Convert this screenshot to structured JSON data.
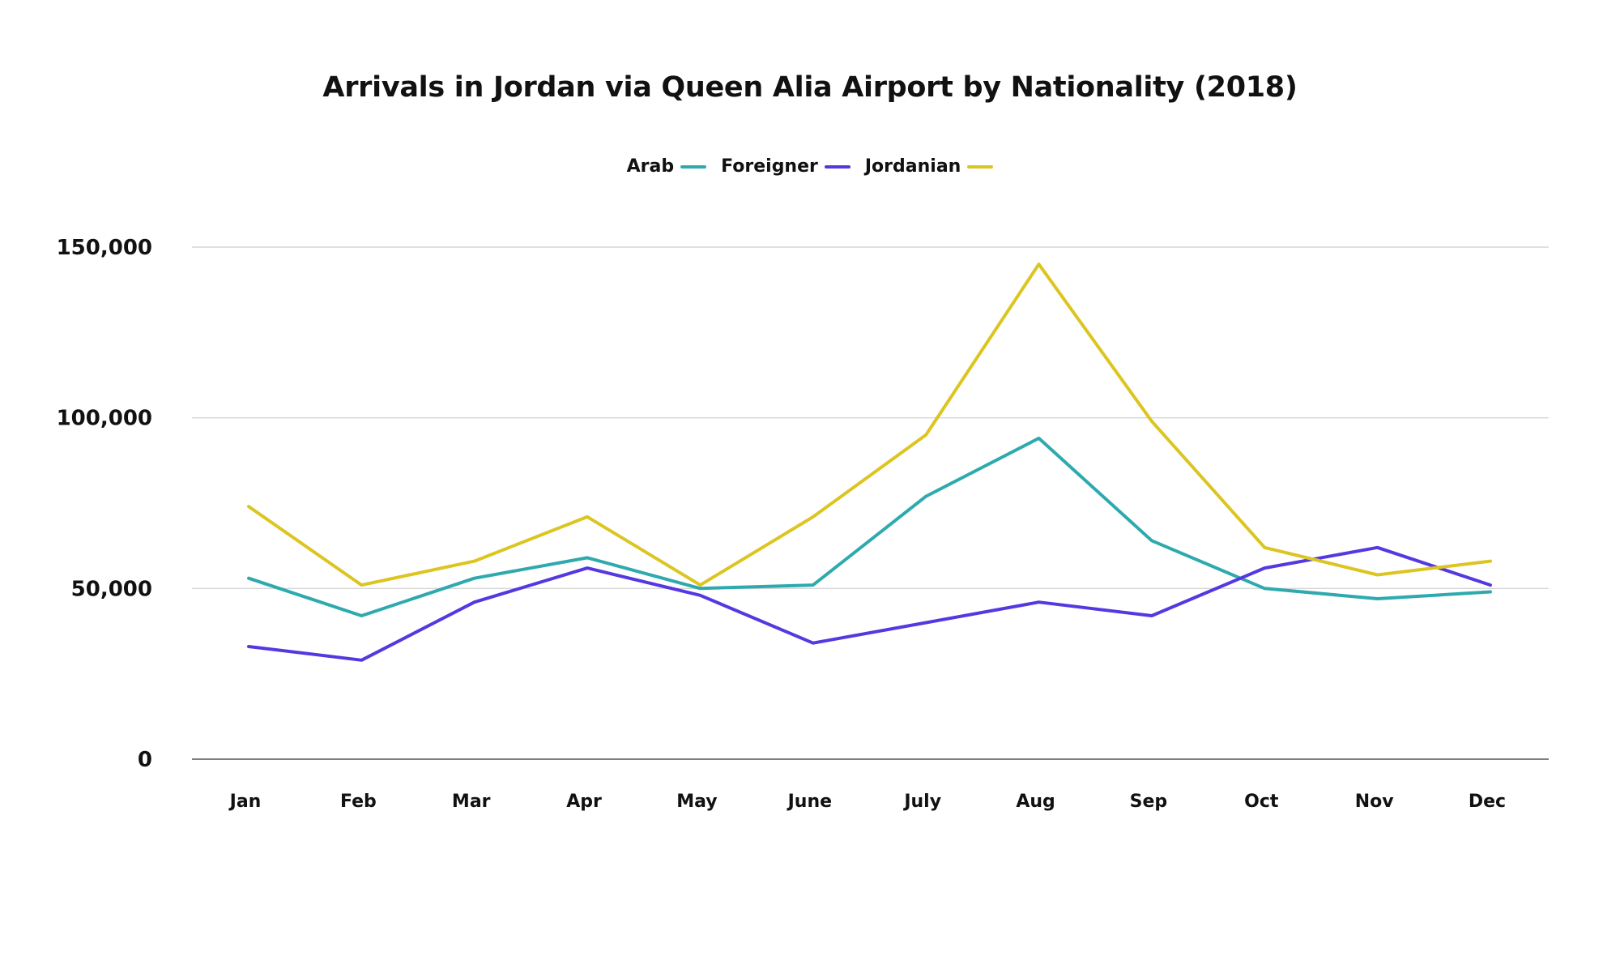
{
  "chart_data": {
    "type": "line",
    "title": "Arrivals in Jordan via Queen Alia Airport by Nationality (2018)",
    "categories": [
      "Jan",
      "Feb",
      "Mar",
      "Apr",
      "May",
      "June",
      "July",
      "Aug",
      "Sep",
      "Oct",
      "Nov",
      "Dec"
    ],
    "ylim": [
      0,
      150000
    ],
    "yticks": [
      0,
      50000,
      100000,
      150000
    ],
    "ytick_labels": [
      "0",
      "50,000",
      "100,000",
      "150,000"
    ],
    "grid": true,
    "legend_position": "top-center",
    "series": [
      {
        "name": "Arab",
        "color": "#2eaaae",
        "values": [
          53000,
          42000,
          53000,
          59000,
          50000,
          51000,
          77000,
          94000,
          64000,
          50000,
          47000,
          49000
        ]
      },
      {
        "name": "Foreigner",
        "color": "#5538e0",
        "values": [
          33000,
          29000,
          46000,
          56000,
          48000,
          34000,
          40000,
          46000,
          42000,
          56000,
          62000,
          51000
        ]
      },
      {
        "name": "Jordanian",
        "color": "#dcc521",
        "values": [
          74000,
          51000,
          58000,
          71000,
          51000,
          71000,
          95000,
          145000,
          99000,
          62000,
          54000,
          58000
        ]
      }
    ]
  }
}
